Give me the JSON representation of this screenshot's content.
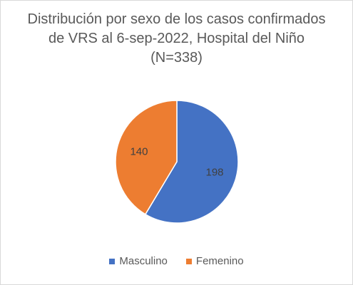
{
  "chart_data": {
    "type": "pie",
    "title_lines": [
      "Distribución por sexo de los casos confirmados",
      "de VRS al 6-sep-2022, Hospital del Niño",
      "(N=338)"
    ],
    "categories": [
      "Masculino",
      "Femenino"
    ],
    "values": [
      198,
      140
    ],
    "data_labels": [
      "198",
      "140"
    ],
    "colors": [
      "#4472C4",
      "#ED7D31"
    ],
    "legend_position": "bottom"
  }
}
